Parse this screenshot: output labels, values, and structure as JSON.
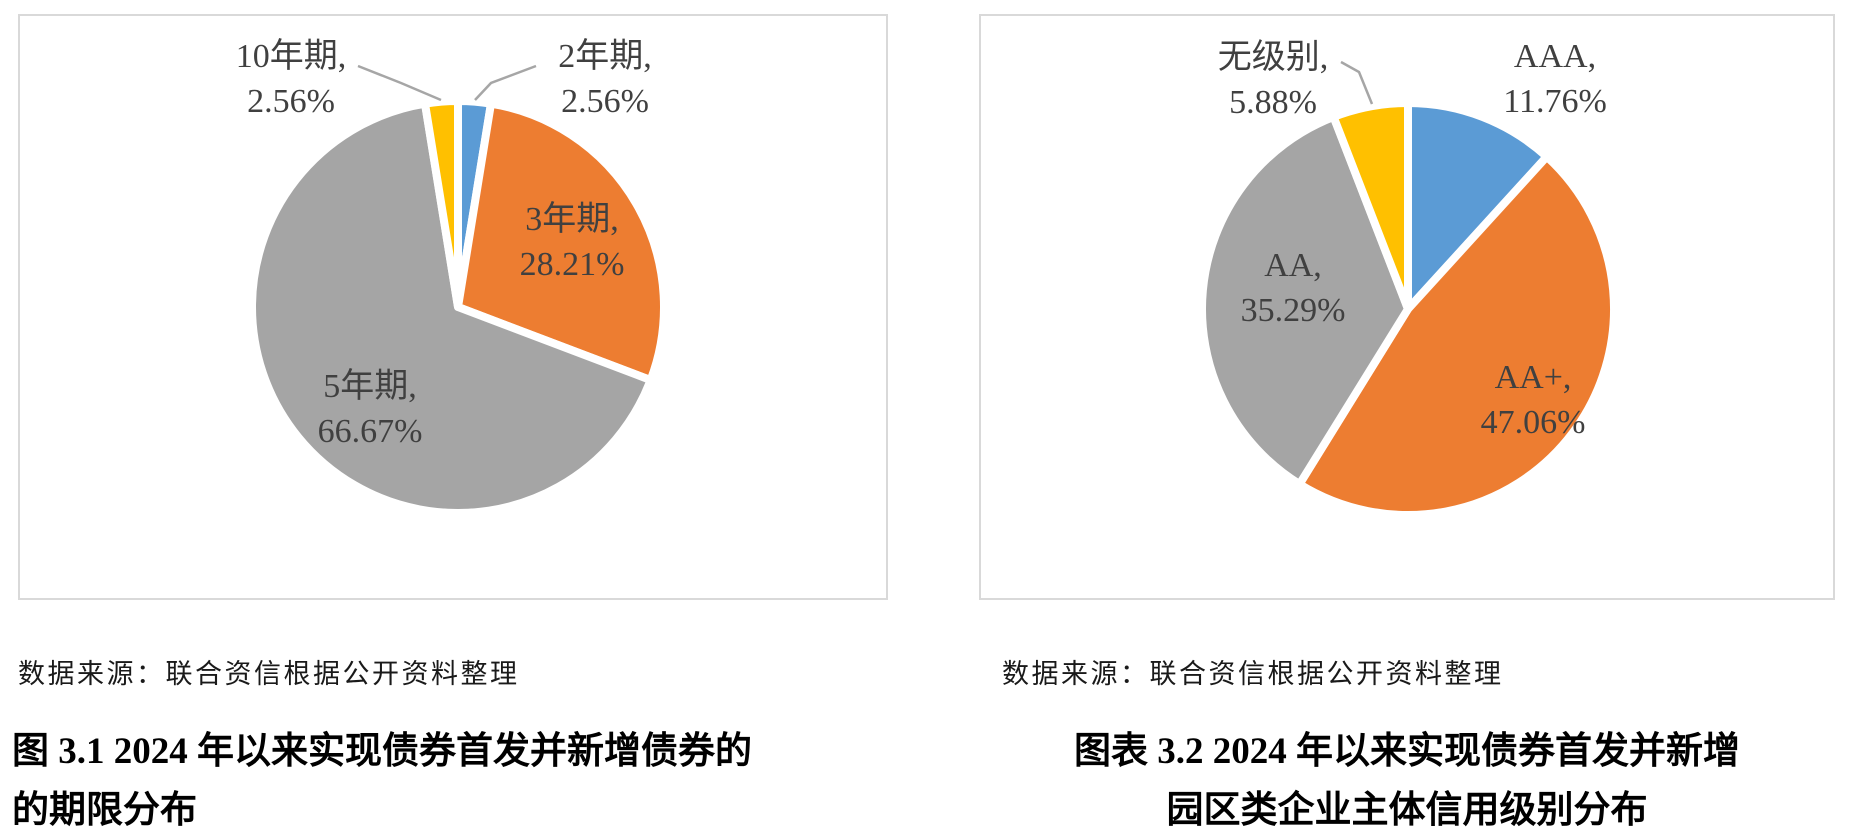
{
  "palette": {
    "blue": "#5B9BD5",
    "orange": "#ED7D31",
    "gray": "#A5A5A5",
    "yellow": "#FFC000",
    "label_text": "#404040",
    "leader_line": "#A6A6A6",
    "panel_border": "#D9D9D9",
    "caption_text": "#000000"
  },
  "charts": [
    {
      "source_note": "数据来源：联合资信根据公开资料整理",
      "caption": {
        "line1": "图 3.1  2024 年以来实现债券首发并新增债券的",
        "line2": "的期限分布"
      }
    },
    {
      "source_note": "数据来源：联合资信根据公开资料整理",
      "caption": {
        "line1": "图表 3.2  2024 年以来实现债券首发并新增",
        "line2": "园区类企业主体信用级别分布"
      }
    }
  ],
  "chart_data": [
    {
      "type": "pie",
      "title": "图 3.1 2024 年以来实现债券首发并新增债券的的期限分布",
      "source": "数据来源：联合资信根据公开资料整理",
      "direction": "clockwise",
      "start_angle_deg": 0,
      "legend": "none",
      "slices": [
        {
          "name": "2年期",
          "value_pct": 2.56,
          "color": "#5B9BD5",
          "label_line1": "2年期,",
          "label_line2": "2.56%",
          "label_position": "outside-right"
        },
        {
          "name": "3年期",
          "value_pct": 28.21,
          "color": "#ED7D31",
          "label_line1": "3年期,",
          "label_line2": "28.21%",
          "label_position": "inside"
        },
        {
          "name": "5年期",
          "value_pct": 66.67,
          "color": "#A5A5A5",
          "label_line1": "5年期,",
          "label_line2": "66.67%",
          "label_position": "inside"
        },
        {
          "name": "10年期",
          "value_pct": 2.56,
          "color": "#FFC000",
          "label_line1": "10年期,",
          "label_line2": "2.56%",
          "label_position": "outside-left"
        }
      ]
    },
    {
      "type": "pie",
      "title": "图表 3.2 2024 年以来实现债券首发并新增园区类企业主体信用级别分布",
      "source": "数据来源：联合资信根据公开资料整理",
      "direction": "clockwise",
      "start_angle_deg": 0,
      "legend": "none",
      "slices": [
        {
          "name": "AAA",
          "value_pct": 11.76,
          "color": "#5B9BD5",
          "label_line1": "AAA,",
          "label_line2": "11.76%",
          "label_position": "outside-right"
        },
        {
          "name": "AA+",
          "value_pct": 47.06,
          "color": "#ED7D31",
          "label_line1": "AA+,",
          "label_line2": "47.06%",
          "label_position": "inside"
        },
        {
          "name": "AA",
          "value_pct": 35.29,
          "color": "#A5A5A5",
          "label_line1": "AA,",
          "label_line2": "35.29%",
          "label_position": "inside"
        },
        {
          "name": "无级别",
          "value_pct": 5.88,
          "color": "#FFC000",
          "label_line1": "无级别,",
          "label_line2": "5.88%",
          "label_position": "outside-left"
        }
      ]
    }
  ]
}
